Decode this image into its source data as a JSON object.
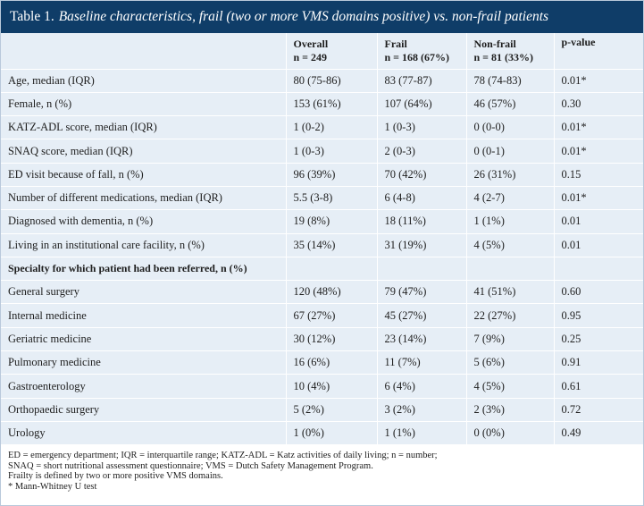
{
  "table": {
    "label": "Table 1.",
    "caption": "Baseline characteristics, frail (two or more VMS domains positive) vs. non-frail patients",
    "columns": [
      {
        "line1": "",
        "line2": ""
      },
      {
        "line1": "Overall",
        "line2": "n = 249"
      },
      {
        "line1": "Frail",
        "line2": "n = 168 (67%)"
      },
      {
        "line1": "Non-frail",
        "line2": "n = 81 (33%)"
      },
      {
        "line1": "p-value",
        "line2": ""
      }
    ],
    "rows": [
      [
        "Age, median (IQR)",
        "80 (75-86)",
        "83 (77-87)",
        "78 (74-83)",
        "0.01*"
      ],
      [
        "Female, n (%)",
        "153 (61%)",
        "107 (64%)",
        "46 (57%)",
        "0.30"
      ],
      [
        "KATZ-ADL score, median (IQR)",
        "1 (0-2)",
        "1 (0-3)",
        "0 (0-0)",
        "0.01*"
      ],
      [
        "SNAQ score, median (IQR)",
        "1 (0-3)",
        "2 (0-3)",
        "0 (0-1)",
        "0.01*"
      ],
      [
        "ED visit because of fall, n (%)",
        "96 (39%)",
        "70 (42%)",
        "26 (31%)",
        "0.15"
      ],
      [
        "Number of different medications, median (IQR)",
        "5.5 (3-8)",
        "6 (4-8)",
        "4 (2-7)",
        "0.01*"
      ],
      [
        "Diagnosed with dementia, n (%)",
        "19 (8%)",
        "18 (11%)",
        "1 (1%)",
        "0.01"
      ],
      [
        "Living in an institutional care facility, n (%)",
        "35 (14%)",
        "31 (19%)",
        "4 (5%)",
        "0.01"
      ]
    ],
    "section_title": "Specialty for which patient had been referred, n (%)",
    "section_rows": [
      [
        "General surgery",
        "120 (48%)",
        "79 (47%)",
        "41 (51%)",
        "0.60"
      ],
      [
        "Internal medicine",
        "67 (27%)",
        "45 (27%)",
        "22 (27%)",
        "0.95"
      ],
      [
        "Geriatric medicine",
        "30 (12%)",
        "23 (14%)",
        "7 (9%)",
        "0.25"
      ],
      [
        "Pulmonary medicine",
        "16 (6%)",
        "11 (7%)",
        "5 (6%)",
        "0.91"
      ],
      [
        "Gastroenterology",
        "10 (4%)",
        "6 (4%)",
        "4 (5%)",
        "0.61"
      ],
      [
        "Orthopaedic surgery",
        "5 (2%)",
        "3 (2%)",
        "2 (3%)",
        "0.72"
      ],
      [
        "Urology",
        "1 (0%)",
        "1 (1%)",
        "0 (0%)",
        "0.49"
      ]
    ],
    "footnotes": [
      "ED = emergency department; IQR = interquartile range; KATZ-ADL = Katz activities of daily living; n = number;",
      "SNAQ = short nutritional assessment questionnaire; VMS = Dutch Safety Management Program.",
      "Frailty is defined by two or more positive VMS domains.",
      "* Mann-Whitney U test"
    ]
  }
}
